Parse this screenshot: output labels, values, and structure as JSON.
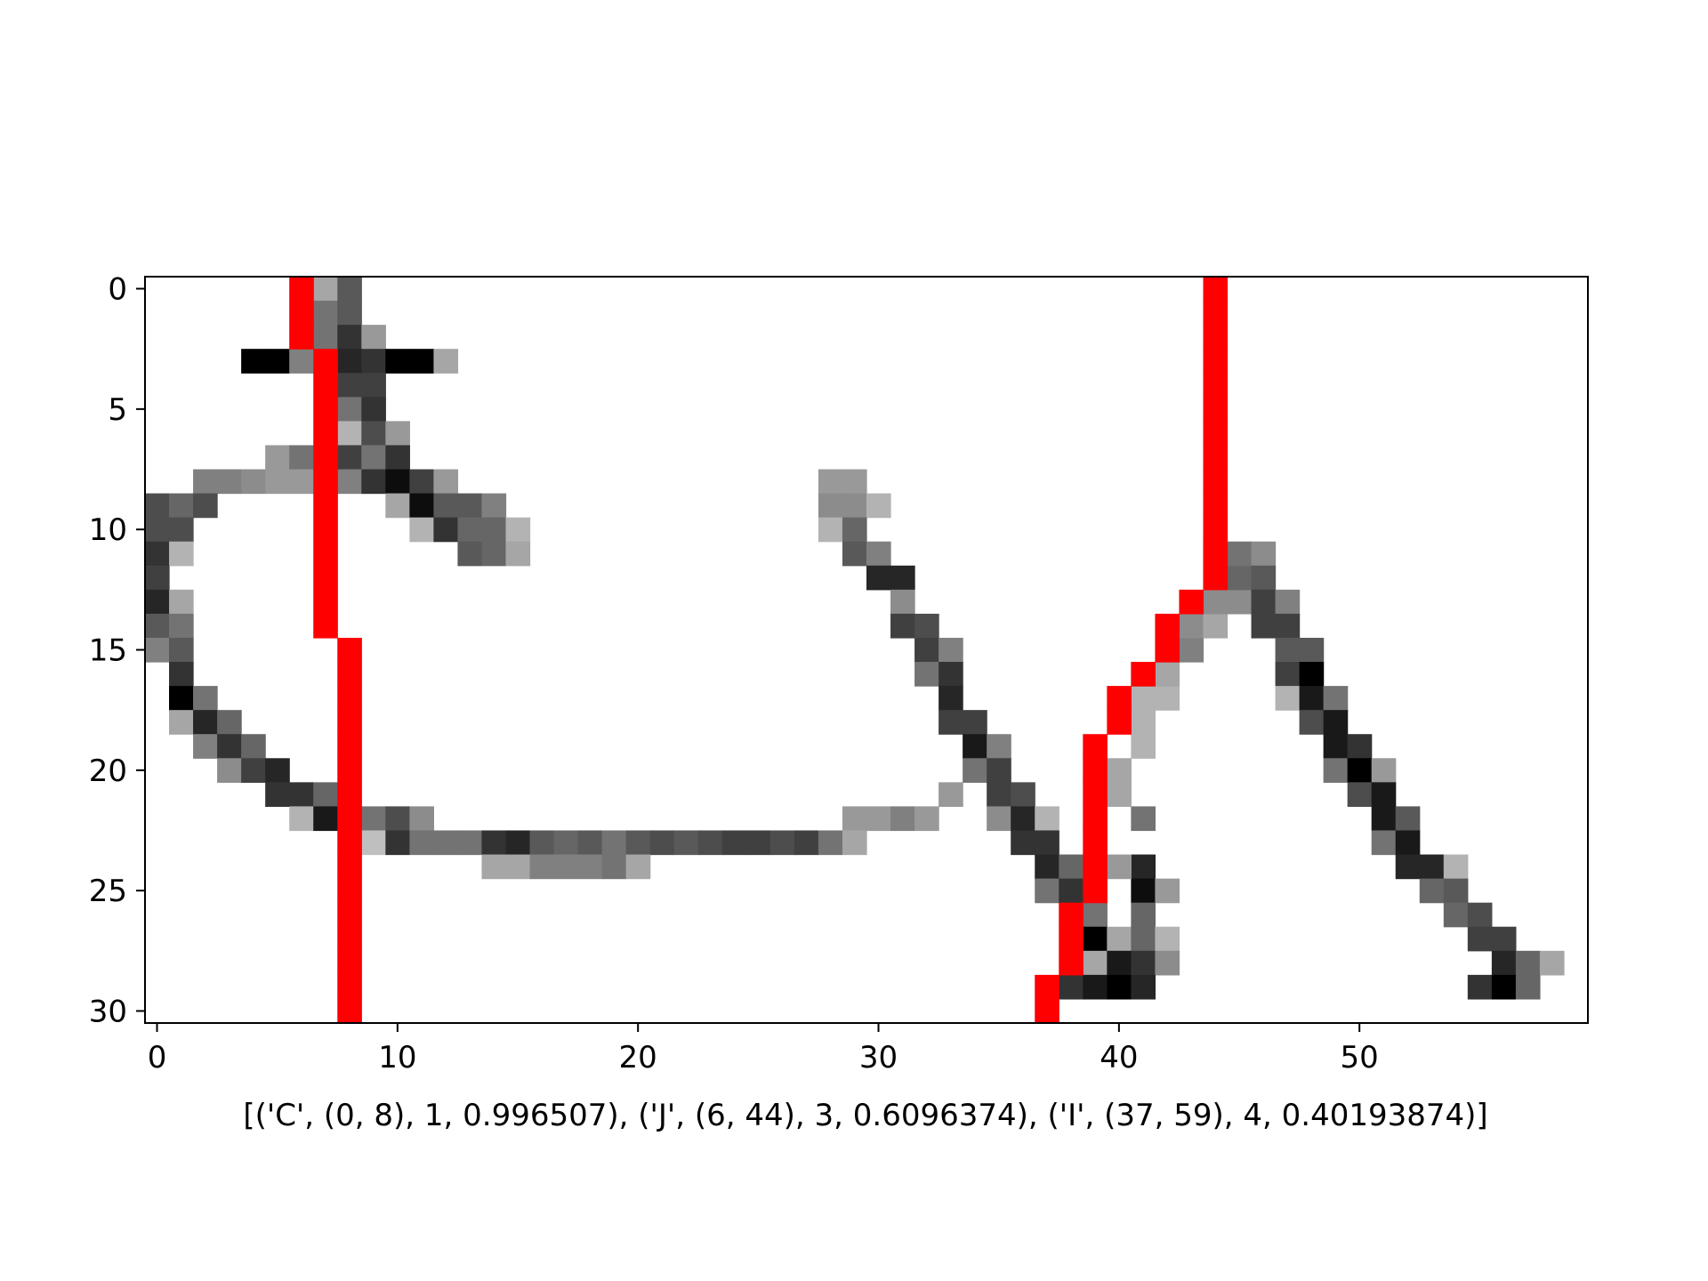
{
  "chart_data": {
    "type": "heatmap",
    "title": "",
    "xlabel": "[('C', (0, 8), 1, 0.996507), ('J', (6, 44), 3, 0.6096374), ('I', (37, 59), 4, 0.40193874)]",
    "ylabel": "",
    "grid": false,
    "colormap": "gray_r",
    "xlim": [
      -0.5,
      59.5
    ],
    "ylim": [
      30.5,
      -0.5
    ],
    "xticks": [
      0,
      10,
      20,
      30,
      40,
      50
    ],
    "yticks": [
      0,
      5,
      10,
      15,
      20,
      25,
      30
    ],
    "grid_size": {
      "rows": 31,
      "cols": 60
    },
    "cells": [
      [
        0,
        7,
        0.35
      ],
      [
        0,
        8,
        0.65
      ],
      [
        1,
        7,
        0.55
      ],
      [
        1,
        8,
        0.65
      ],
      [
        2,
        7,
        0.55
      ],
      [
        2,
        8,
        0.8
      ],
      [
        2,
        9,
        0.4
      ],
      [
        3,
        4,
        1.0
      ],
      [
        3,
        5,
        1.0
      ],
      [
        3,
        6,
        0.5
      ],
      [
        3,
        8,
        0.85
      ],
      [
        3,
        9,
        0.8
      ],
      [
        3,
        10,
        1.0
      ],
      [
        3,
        11,
        1.0
      ],
      [
        3,
        12,
        0.35
      ],
      [
        4,
        8,
        0.75
      ],
      [
        4,
        9,
        0.75
      ],
      [
        5,
        8,
        0.55
      ],
      [
        5,
        9,
        0.8
      ],
      [
        6,
        8,
        0.3
      ],
      [
        6,
        9,
        0.7
      ],
      [
        6,
        10,
        0.4
      ],
      [
        7,
        5,
        0.4
      ],
      [
        7,
        6,
        0.55
      ],
      [
        7,
        8,
        0.75
      ],
      [
        7,
        9,
        0.55
      ],
      [
        7,
        10,
        0.8
      ],
      [
        8,
        2,
        0.5
      ],
      [
        8,
        3,
        0.5
      ],
      [
        8,
        4,
        0.45
      ],
      [
        8,
        5,
        0.4
      ],
      [
        8,
        6,
        0.4
      ],
      [
        8,
        8,
        0.5
      ],
      [
        8,
        9,
        0.8
      ],
      [
        8,
        10,
        0.95
      ],
      [
        8,
        11,
        0.75
      ],
      [
        8,
        12,
        0.4
      ],
      [
        8,
        28,
        0.4
      ],
      [
        8,
        29,
        0.4
      ],
      [
        9,
        0,
        0.7
      ],
      [
        9,
        1,
        0.6
      ],
      [
        9,
        2,
        0.7
      ],
      [
        9,
        10,
        0.35
      ],
      [
        9,
        11,
        0.95
      ],
      [
        9,
        12,
        0.65
      ],
      [
        9,
        13,
        0.65
      ],
      [
        9,
        14,
        0.5
      ],
      [
        9,
        28,
        0.45
      ],
      [
        9,
        29,
        0.45
      ],
      [
        9,
        30,
        0.3
      ],
      [
        10,
        0,
        0.7
      ],
      [
        10,
        1,
        0.7
      ],
      [
        10,
        11,
        0.3
      ],
      [
        10,
        12,
        0.8
      ],
      [
        10,
        13,
        0.6
      ],
      [
        10,
        14,
        0.6
      ],
      [
        10,
        15,
        0.3
      ],
      [
        10,
        28,
        0.3
      ],
      [
        10,
        29,
        0.6
      ],
      [
        11,
        0,
        0.8
      ],
      [
        11,
        1,
        0.3
      ],
      [
        11,
        13,
        0.65
      ],
      [
        11,
        14,
        0.6
      ],
      [
        11,
        15,
        0.35
      ],
      [
        11,
        29,
        0.65
      ],
      [
        11,
        30,
        0.5
      ],
      [
        12,
        0,
        0.75
      ],
      [
        12,
        30,
        0.85
      ],
      [
        12,
        31,
        0.85
      ],
      [
        13,
        0,
        0.85
      ],
      [
        13,
        1,
        0.35
      ],
      [
        13,
        31,
        0.45
      ],
      [
        14,
        0,
        0.65
      ],
      [
        14,
        1,
        0.55
      ],
      [
        14,
        31,
        0.75
      ],
      [
        14,
        32,
        0.7
      ],
      [
        15,
        0,
        0.5
      ],
      [
        15,
        1,
        0.65
      ],
      [
        15,
        32,
        0.75
      ],
      [
        15,
        33,
        0.5
      ],
      [
        16,
        1,
        0.8
      ],
      [
        16,
        32,
        0.55
      ],
      [
        16,
        33,
        0.8
      ],
      [
        17,
        1,
        1.0
      ],
      [
        17,
        2,
        0.55
      ],
      [
        17,
        33,
        0.85
      ],
      [
        18,
        1,
        0.35
      ],
      [
        18,
        2,
        0.85
      ],
      [
        18,
        3,
        0.6
      ],
      [
        18,
        33,
        0.75
      ],
      [
        18,
        34,
        0.75
      ],
      [
        19,
        2,
        0.5
      ],
      [
        19,
        3,
        0.8
      ],
      [
        19,
        4,
        0.6
      ],
      [
        19,
        34,
        0.9
      ],
      [
        19,
        35,
        0.5
      ],
      [
        20,
        3,
        0.45
      ],
      [
        20,
        4,
        0.75
      ],
      [
        20,
        5,
        0.85
      ],
      [
        20,
        34,
        0.55
      ],
      [
        20,
        35,
        0.75
      ],
      [
        21,
        5,
        0.8
      ],
      [
        21,
        6,
        0.8
      ],
      [
        21,
        7,
        0.6
      ],
      [
        21,
        33,
        0.4
      ],
      [
        21,
        35,
        0.75
      ],
      [
        21,
        36,
        0.7
      ],
      [
        22,
        6,
        0.3
      ],
      [
        22,
        7,
        0.9
      ],
      [
        22,
        9,
        0.55
      ],
      [
        22,
        10,
        0.7
      ],
      [
        22,
        11,
        0.45
      ],
      [
        22,
        29,
        0.4
      ],
      [
        22,
        30,
        0.4
      ],
      [
        22,
        31,
        0.5
      ],
      [
        22,
        32,
        0.4
      ],
      [
        22,
        35,
        0.45
      ],
      [
        22,
        36,
        0.85
      ],
      [
        22,
        37,
        0.3
      ],
      [
        23,
        9,
        0.25
      ],
      [
        23,
        10,
        0.8
      ],
      [
        23,
        11,
        0.55
      ],
      [
        23,
        12,
        0.55
      ],
      [
        23,
        13,
        0.55
      ],
      [
        23,
        14,
        0.8
      ],
      [
        23,
        15,
        0.85
      ],
      [
        23,
        16,
        0.65
      ],
      [
        23,
        17,
        0.6
      ],
      [
        23,
        18,
        0.65
      ],
      [
        23,
        19,
        0.55
      ],
      [
        23,
        20,
        0.65
      ],
      [
        23,
        21,
        0.7
      ],
      [
        23,
        22,
        0.65
      ],
      [
        23,
        23,
        0.7
      ],
      [
        23,
        24,
        0.75
      ],
      [
        23,
        25,
        0.75
      ],
      [
        23,
        26,
        0.7
      ],
      [
        23,
        27,
        0.75
      ],
      [
        23,
        28,
        0.55
      ],
      [
        23,
        29,
        0.35
      ],
      [
        23,
        36,
        0.8
      ],
      [
        23,
        37,
        0.8
      ],
      [
        24,
        14,
        0.35
      ],
      [
        24,
        15,
        0.35
      ],
      [
        24,
        16,
        0.5
      ],
      [
        24,
        17,
        0.5
      ],
      [
        24,
        18,
        0.5
      ],
      [
        24,
        19,
        0.55
      ],
      [
        24,
        20,
        0.35
      ],
      [
        24,
        37,
        0.85
      ],
      [
        24,
        38,
        0.6
      ],
      [
        24,
        41,
        0.85
      ],
      [
        25,
        37,
        0.55
      ],
      [
        25,
        38,
        0.8
      ],
      [
        25,
        41,
        0.95
      ],
      [
        25,
        42,
        0.4
      ],
      [
        26,
        39,
        0.55
      ],
      [
        26,
        41,
        0.6
      ],
      [
        27,
        39,
        1.0
      ],
      [
        27,
        40,
        0.35
      ],
      [
        27,
        41,
        0.6
      ],
      [
        27,
        42,
        0.3
      ],
      [
        28,
        39,
        0.35
      ],
      [
        28,
        40,
        0.9
      ],
      [
        28,
        41,
        0.8
      ],
      [
        28,
        42,
        0.45
      ],
      [
        29,
        38,
        0.8
      ],
      [
        29,
        39,
        0.9
      ],
      [
        29,
        40,
        1.0
      ],
      [
        29,
        41,
        0.85
      ],
      [
        24,
        40,
        0.4
      ],
      [
        22,
        41,
        0.55
      ],
      [
        21,
        40,
        0.35
      ],
      [
        20,
        40,
        0.35
      ],
      [
        19,
        41,
        0.3
      ],
      [
        18,
        41,
        0.3
      ],
      [
        17,
        41,
        0.3
      ],
      [
        17,
        42,
        0.3
      ],
      [
        16,
        41,
        0.35
      ],
      [
        16,
        42,
        0.35
      ],
      [
        15,
        43,
        0.5
      ],
      [
        14,
        43,
        0.45
      ],
      [
        14,
        44,
        0.35
      ],
      [
        13,
        44,
        0.45
      ],
      [
        13,
        45,
        0.45
      ],
      [
        12,
        44,
        0.5
      ],
      [
        12,
        45,
        0.6
      ],
      [
        11,
        44,
        0.45
      ],
      [
        11,
        45,
        0.55
      ],
      [
        11,
        46,
        0.45
      ],
      [
        12,
        46,
        0.65
      ],
      [
        13,
        46,
        0.75
      ],
      [
        13,
        47,
        0.5
      ],
      [
        14,
        46,
        0.75
      ],
      [
        14,
        47,
        0.75
      ],
      [
        15,
        47,
        0.65
      ],
      [
        15,
        48,
        0.65
      ],
      [
        16,
        47,
        0.75
      ],
      [
        16,
        48,
        1.0
      ],
      [
        17,
        47,
        0.3
      ],
      [
        17,
        48,
        0.9
      ],
      [
        17,
        49,
        0.55
      ],
      [
        18,
        48,
        0.7
      ],
      [
        18,
        49,
        0.9
      ],
      [
        19,
        49,
        0.9
      ],
      [
        19,
        50,
        0.8
      ],
      [
        20,
        49,
        0.55
      ],
      [
        20,
        50,
        1.0
      ],
      [
        20,
        51,
        0.4
      ],
      [
        21,
        50,
        0.7
      ],
      [
        21,
        51,
        0.9
      ],
      [
        22,
        51,
        0.9
      ],
      [
        22,
        52,
        0.65
      ],
      [
        23,
        51,
        0.55
      ],
      [
        23,
        52,
        0.9
      ],
      [
        24,
        52,
        0.85
      ],
      [
        24,
        53,
        0.85
      ],
      [
        24,
        54,
        0.3
      ],
      [
        25,
        53,
        0.6
      ],
      [
        25,
        54,
        0.65
      ],
      [
        26,
        54,
        0.6
      ],
      [
        26,
        55,
        0.7
      ],
      [
        27,
        55,
        0.75
      ],
      [
        27,
        56,
        0.75
      ],
      [
        28,
        56,
        0.85
      ],
      [
        28,
        57,
        0.6
      ],
      [
        28,
        58,
        0.35
      ],
      [
        29,
        55,
        0.8
      ],
      [
        29,
        56,
        1.0
      ],
      [
        29,
        57,
        0.6
      ]
    ],
    "overlay": {
      "color": "#ff0000",
      "cells": [
        [
          0,
          6
        ],
        [
          1,
          6
        ],
        [
          2,
          6
        ],
        [
          3,
          7
        ],
        [
          4,
          7
        ],
        [
          5,
          7
        ],
        [
          6,
          7
        ],
        [
          7,
          7
        ],
        [
          8,
          7
        ],
        [
          9,
          7
        ],
        [
          10,
          7
        ],
        [
          11,
          7
        ],
        [
          12,
          7
        ],
        [
          13,
          7
        ],
        [
          14,
          7
        ],
        [
          15,
          8
        ],
        [
          16,
          8
        ],
        [
          17,
          8
        ],
        [
          18,
          8
        ],
        [
          19,
          8
        ],
        [
          20,
          8
        ],
        [
          21,
          8
        ],
        [
          22,
          8
        ],
        [
          23,
          8
        ],
        [
          24,
          8
        ],
        [
          25,
          8
        ],
        [
          26,
          8
        ],
        [
          27,
          8
        ],
        [
          28,
          8
        ],
        [
          29,
          8
        ],
        [
          30,
          8
        ],
        [
          0,
          44
        ],
        [
          1,
          44
        ],
        [
          2,
          44
        ],
        [
          3,
          44
        ],
        [
          4,
          44
        ],
        [
          5,
          44
        ],
        [
          6,
          44
        ],
        [
          7,
          44
        ],
        [
          8,
          44
        ],
        [
          9,
          44
        ],
        [
          10,
          44
        ],
        [
          11,
          44
        ],
        [
          12,
          44
        ],
        [
          13,
          43
        ],
        [
          14,
          42
        ],
        [
          15,
          42
        ],
        [
          16,
          41
        ],
        [
          17,
          40
        ],
        [
          18,
          40
        ],
        [
          19,
          39
        ],
        [
          20,
          39
        ],
        [
          21,
          39
        ],
        [
          22,
          39
        ],
        [
          23,
          39
        ],
        [
          24,
          39
        ],
        [
          25,
          39
        ],
        [
          26,
          38
        ],
        [
          27,
          38
        ],
        [
          28,
          38
        ],
        [
          29,
          37
        ],
        [
          30,
          37
        ]
      ]
    }
  }
}
